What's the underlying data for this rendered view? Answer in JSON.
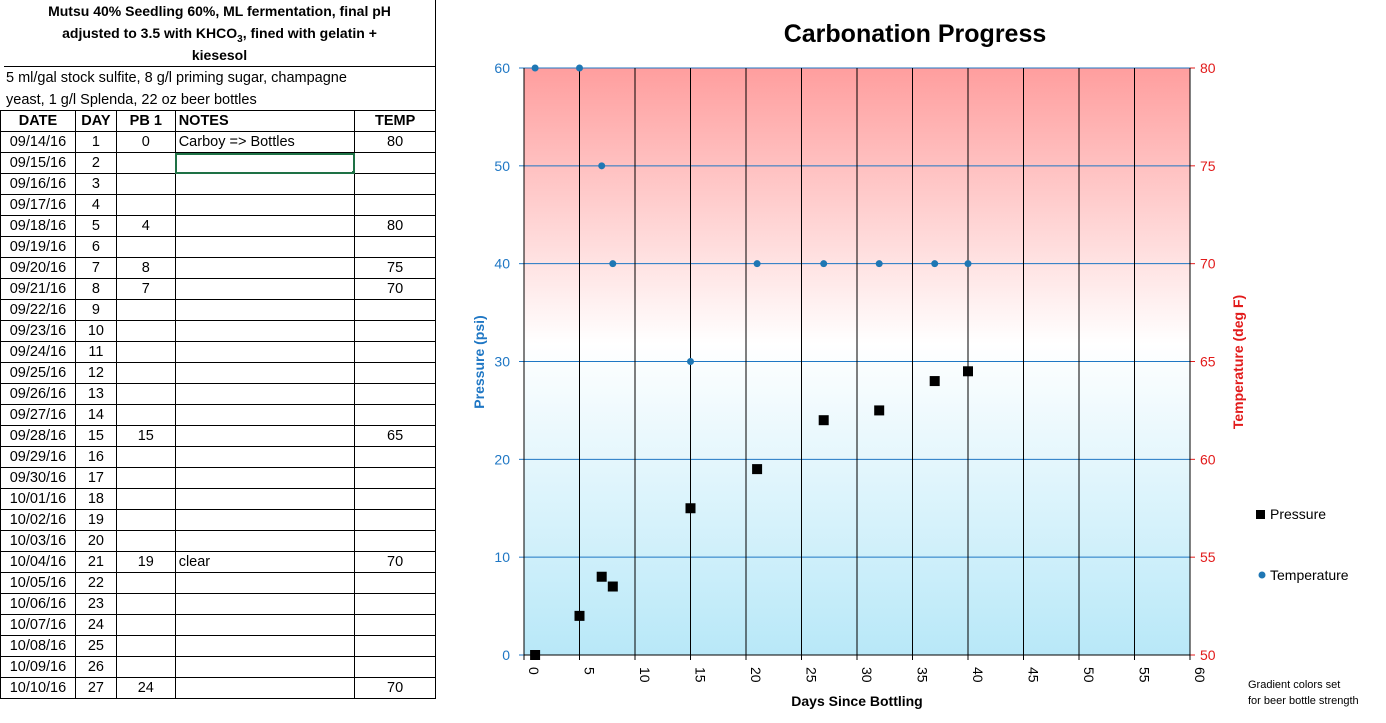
{
  "sheet": {
    "title_line1": "Mutsu 40% Seedling 60%, ML fermentation, final pH",
    "title_line2_a": "adjusted to 3.5 with KHCO",
    "title_line2_sub": "3",
    "title_line2_b": ", fined with gelatin +",
    "title_line3": "kiesesol",
    "notes_line1": "5 ml/gal stock sulfite, 8 g/l priming sugar, champagne",
    "notes_line2": "yeast, 1 g/l Splenda, 22 oz beer bottles",
    "headers": [
      "DATE",
      "DAY",
      "PB 1",
      "NOTES",
      "TEMP"
    ],
    "rows": [
      {
        "date": "09/14/16",
        "day": "1",
        "pb": "0",
        "notes": "Carboy => Bottles",
        "temp": "80"
      },
      {
        "date": "09/15/16",
        "day": "2",
        "pb": "",
        "notes": "",
        "temp": ""
      },
      {
        "date": "09/16/16",
        "day": "3",
        "pb": "",
        "notes": "",
        "temp": ""
      },
      {
        "date": "09/17/16",
        "day": "4",
        "pb": "",
        "notes": "",
        "temp": ""
      },
      {
        "date": "09/18/16",
        "day": "5",
        "pb": "4",
        "notes": "",
        "temp": "80"
      },
      {
        "date": "09/19/16",
        "day": "6",
        "pb": "",
        "notes": "",
        "temp": ""
      },
      {
        "date": "09/20/16",
        "day": "7",
        "pb": "8",
        "notes": "",
        "temp": "75"
      },
      {
        "date": "09/21/16",
        "day": "8",
        "pb": "7",
        "notes": "",
        "temp": "70"
      },
      {
        "date": "09/22/16",
        "day": "9",
        "pb": "",
        "notes": "",
        "temp": ""
      },
      {
        "date": "09/23/16",
        "day": "10",
        "pb": "",
        "notes": "",
        "temp": ""
      },
      {
        "date": "09/24/16",
        "day": "11",
        "pb": "",
        "notes": "",
        "temp": ""
      },
      {
        "date": "09/25/16",
        "day": "12",
        "pb": "",
        "notes": "",
        "temp": ""
      },
      {
        "date": "09/26/16",
        "day": "13",
        "pb": "",
        "notes": "",
        "temp": ""
      },
      {
        "date": "09/27/16",
        "day": "14",
        "pb": "",
        "notes": "",
        "temp": ""
      },
      {
        "date": "09/28/16",
        "day": "15",
        "pb": "15",
        "notes": "",
        "temp": "65"
      },
      {
        "date": "09/29/16",
        "day": "16",
        "pb": "",
        "notes": "",
        "temp": ""
      },
      {
        "date": "09/30/16",
        "day": "17",
        "pb": "",
        "notes": "",
        "temp": ""
      },
      {
        "date": "10/01/16",
        "day": "18",
        "pb": "",
        "notes": "",
        "temp": ""
      },
      {
        "date": "10/02/16",
        "day": "19",
        "pb": "",
        "notes": "",
        "temp": ""
      },
      {
        "date": "10/03/16",
        "day": "20",
        "pb": "",
        "notes": "",
        "temp": ""
      },
      {
        "date": "10/04/16",
        "day": "21",
        "pb": "19",
        "notes": "clear",
        "temp": "70"
      },
      {
        "date": "10/05/16",
        "day": "22",
        "pb": "",
        "notes": "",
        "temp": ""
      },
      {
        "date": "10/06/16",
        "day": "23",
        "pb": "",
        "notes": "",
        "temp": ""
      },
      {
        "date": "10/07/16",
        "day": "24",
        "pb": "",
        "notes": "",
        "temp": ""
      },
      {
        "date": "10/08/16",
        "day": "25",
        "pb": "",
        "notes": "",
        "temp": ""
      },
      {
        "date": "10/09/16",
        "day": "26",
        "pb": "",
        "notes": "",
        "temp": ""
      },
      {
        "date": "10/10/16",
        "day": "27",
        "pb": "24",
        "notes": "",
        "temp": "70"
      }
    ]
  },
  "chart_data": {
    "type": "scatter",
    "title": "Carbonation Progress",
    "xlabel": "Days Since Bottling",
    "ylabel": "Pressure (psi)",
    "y2label": "Temperature (deg F)",
    "xlim": [
      0,
      60
    ],
    "xticks": [
      0,
      5,
      10,
      15,
      20,
      25,
      30,
      35,
      40,
      45,
      50,
      55,
      60
    ],
    "ylim": [
      0,
      60
    ],
    "yticks": [
      0,
      10,
      20,
      30,
      40,
      50,
      60
    ],
    "y2lim": [
      50,
      80
    ],
    "y2ticks": [
      50,
      55,
      60,
      65,
      70,
      75,
      80
    ],
    "legend_position": "right",
    "note_line1": "Gradient colors  set",
    "note_line2": "for beer bottle strength",
    "colors": {
      "pressure": "#000000",
      "temperature": "#1f77b4",
      "left_axis": "#1f77c4",
      "right_axis": "#e21b1b",
      "grad_top": "#ff9e9e",
      "grad_mid": "#ffffff",
      "grad_bottom": "#b8e8f8"
    },
    "series": [
      {
        "name": "Pressure",
        "axis": "left",
        "marker": "square",
        "x": [
          1,
          5,
          7,
          8,
          15,
          21,
          27,
          32,
          37,
          40
        ],
        "y": [
          0,
          4,
          8,
          7,
          15,
          19,
          24,
          25,
          28,
          29
        ]
      },
      {
        "name": "Temperature",
        "axis": "right",
        "marker": "circle",
        "x": [
          1,
          5,
          7,
          8,
          15,
          21,
          27,
          32,
          37,
          40
        ],
        "y": [
          80,
          80,
          75,
          70,
          65,
          70,
          70,
          70,
          70,
          70
        ]
      }
    ]
  }
}
